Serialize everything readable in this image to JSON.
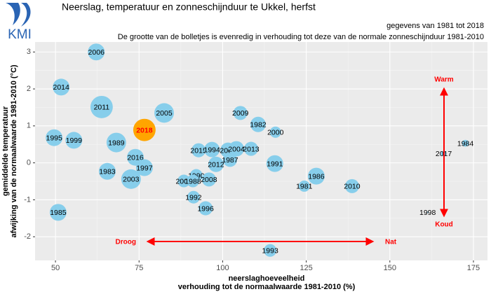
{
  "logo": "KMI",
  "chart_data": {
    "type": "bubble",
    "title": "Neerslag, temperatuur en zonneschijnduur te Ukkel, herfst",
    "subtitle": "gegevens van 1981 tot 2018",
    "note": "De grootte van de bolletjes is evenredig in verhouding tot deze van de normale zonneschijnduur 1981-2010",
    "x_label": [
      "neerslaghoeveelheid",
      "verhouding tot de normaalwaarde 1981-2010 (%)"
    ],
    "y_label": [
      "gemiddelde temperatuur",
      "afwijking van de normaalwaarde 1981-2010 (°C)"
    ],
    "xlim": [
      43.9,
      179.2
    ],
    "xticks": [
      50,
      75,
      100,
      125,
      150,
      175
    ],
    "ylim": [
      -2.64,
      3.27
    ],
    "yticks": [
      -2,
      -1,
      0,
      1,
      2,
      3
    ],
    "grid": true,
    "series": [
      {
        "color": "#87ceeb",
        "label_color": "#000000",
        "labels": [
          "2006",
          "2014",
          "2011",
          "2005",
          "2009",
          "1982",
          "2000",
          "1995",
          "1999",
          "1989",
          "1984",
          "2015",
          "1994",
          "2002",
          "2004",
          "2013",
          "2017",
          "2016",
          "1987",
          "2012",
          "1991",
          "1997",
          "1983",
          "2003",
          "1990",
          "2007",
          "1988",
          "2008",
          "1986",
          "1981",
          "2010",
          "1992",
          "1996",
          "1985",
          "1998",
          "1993"
        ],
        "x": [
          62.2,
          51.7,
          63.8,
          82.5,
          105.3,
          110.6,
          115.8,
          49.6,
          55.5,
          68.2,
          172.6,
          92.8,
          96.8,
          101.6,
          104.1,
          108.5,
          166.1,
          73.9,
          102.2,
          98.0,
          115.6,
          76.6,
          65.5,
          72.6,
          92.1,
          88.4,
          91.1,
          95.9,
          128.0,
          124.4,
          138.7,
          91.3,
          94.9,
          50.8,
          161.3,
          114.2
        ],
        "values": [
          3.0,
          2.05,
          1.51,
          1.35,
          1.35,
          1.04,
          0.83,
          0.68,
          0.61,
          0.55,
          0.53,
          0.34,
          0.36,
          0.34,
          0.38,
          0.38,
          0.25,
          0.15,
          0.08,
          -0.04,
          -0.02,
          -0.13,
          -0.23,
          -0.44,
          -0.34,
          -0.49,
          -0.49,
          -0.45,
          -0.36,
          -0.63,
          -0.63,
          -0.93,
          -1.23,
          -1.34,
          -1.34,
          -2.37
        ],
        "sizes": [
          1.09,
          1.09,
          1.45,
          1.27,
          0.91,
          1.0,
          0.73,
          1.09,
          1.09,
          1.27,
          0.45,
          0.91,
          1.0,
          1.0,
          1.0,
          0.91,
          0.36,
          1.09,
          0.91,
          1.0,
          1.09,
          1.09,
          1.09,
          1.27,
          0.82,
          0.82,
          0.82,
          0.91,
          1.09,
          0.73,
          0.91,
          0.82,
          0.91,
          1.09,
          0.09,
          0.82
        ]
      },
      {
        "color": "#ffa500",
        "label_color": "#ff0000",
        "labels": [
          "2018"
        ],
        "x": [
          76.6
        ],
        "values": [
          0.89
        ],
        "sizes": [
          1.45
        ]
      }
    ],
    "annotations": {
      "warm": "Warm",
      "koud": "Koud",
      "droog": "Droog",
      "nat": "Nat",
      "arrow_color": "#ff0000"
    }
  }
}
